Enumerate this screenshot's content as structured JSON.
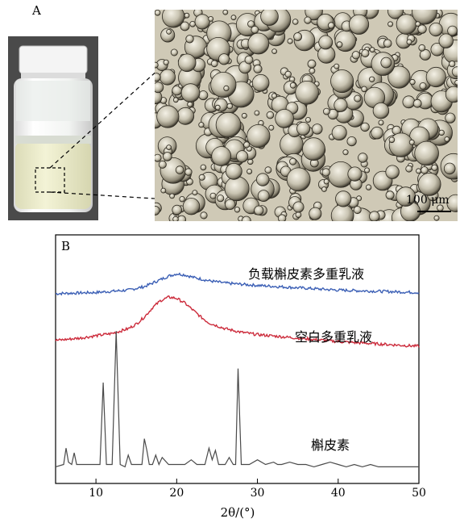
{
  "panels": {
    "a_label": "A",
    "b_label": "B"
  },
  "micrograph": {
    "scale_bar_label": "100 μm"
  },
  "colors": {
    "loaded": "#3b5fb5",
    "blank": "#cc2b3b",
    "drug": "#4a4a4a",
    "vial_cap": "#f4f4f4",
    "emulsion": "#eeeecc"
  },
  "chart_data": {
    "type": "line",
    "xlabel": "2θ/(°)",
    "ylabel": "",
    "xlim": [
      5,
      50
    ],
    "xticks": [
      10,
      20,
      30,
      40,
      50
    ],
    "grid": false,
    "series": [
      {
        "name": "负载槲皮素多重乳液",
        "x": [
          5,
          10,
          14,
          16,
          18,
          19,
          20,
          21,
          22,
          24,
          26,
          30,
          35,
          40,
          45,
          50
        ],
        "y": [
          0.78,
          0.785,
          0.795,
          0.81,
          0.84,
          0.855,
          0.865,
          0.86,
          0.85,
          0.835,
          0.825,
          0.815,
          0.805,
          0.795,
          0.79,
          0.785
        ]
      },
      {
        "name": "空白多重乳液",
        "x": [
          5,
          8,
          10,
          12,
          14,
          15,
          16,
          17,
          18,
          19,
          20,
          21,
          22,
          23,
          24,
          26,
          28,
          30,
          35,
          40,
          45,
          50
        ],
        "y": [
          0.58,
          0.59,
          0.6,
          0.61,
          0.63,
          0.65,
          0.68,
          0.72,
          0.75,
          0.765,
          0.76,
          0.74,
          0.71,
          0.68,
          0.655,
          0.63,
          0.615,
          0.605,
          0.59,
          0.575,
          0.565,
          0.555
        ]
      },
      {
        "name": "槲皮素",
        "x": [
          5,
          6,
          6.3,
          6.6,
          7,
          7.3,
          7.6,
          9,
          10.5,
          10.9,
          11.3,
          12,
          12.5,
          13,
          13.6,
          14,
          14.4,
          15,
          15.7,
          16,
          16.3,
          16.6,
          17,
          17.4,
          17.8,
          18.2,
          19,
          20,
          21,
          21.8,
          22.5,
          23.5,
          24,
          24.4,
          24.8,
          25.2,
          26,
          26.5,
          27,
          27.3,
          27.6,
          28,
          28.5,
          29,
          30,
          31,
          32,
          32.5,
          33,
          34,
          35,
          36,
          37,
          38,
          39,
          40,
          41,
          42,
          43,
          44,
          45,
          46,
          47,
          48,
          49,
          50
        ],
        "y": [
          0.04,
          0.05,
          0.12,
          0.06,
          0.05,
          0.1,
          0.05,
          0.05,
          0.05,
          0.4,
          0.05,
          0.05,
          0.62,
          0.05,
          0.04,
          0.09,
          0.05,
          0.05,
          0.05,
          0.16,
          0.11,
          0.05,
          0.05,
          0.09,
          0.05,
          0.08,
          0.05,
          0.05,
          0.05,
          0.07,
          0.05,
          0.05,
          0.12,
          0.07,
          0.11,
          0.05,
          0.05,
          0.08,
          0.05,
          0.05,
          0.46,
          0.05,
          0.05,
          0.05,
          0.07,
          0.05,
          0.06,
          0.05,
          0.05,
          0.06,
          0.05,
          0.05,
          0.04,
          0.05,
          0.06,
          0.05,
          0.04,
          0.05,
          0.04,
          0.05,
          0.04,
          0.04,
          0.04,
          0.04,
          0.04,
          0.04
        ]
      }
    ]
  }
}
